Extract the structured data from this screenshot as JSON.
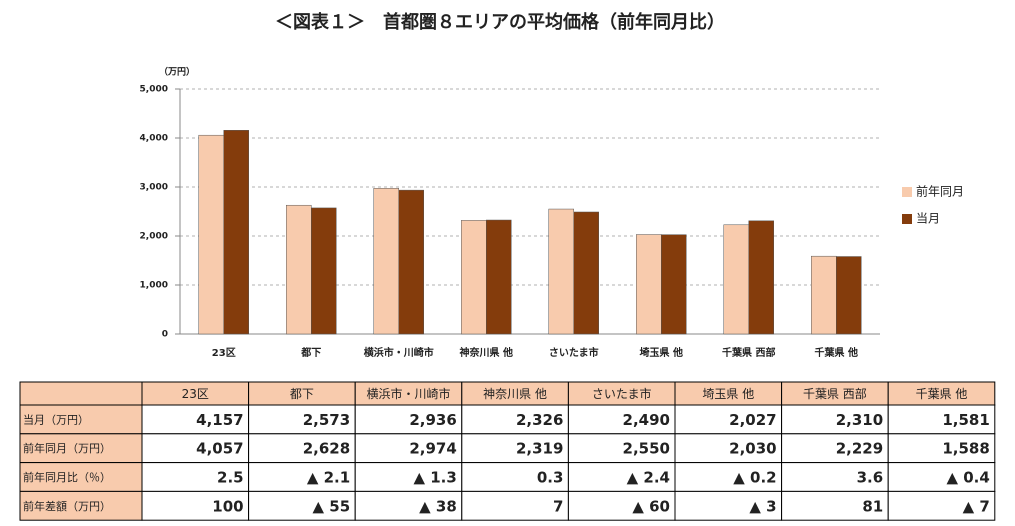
{
  "chart_data": {
    "type": "bar",
    "title": "＜図表１＞　首都圏８エリアの平均価格（前年同月比）",
    "y_label": "（万円）",
    "categories": [
      "23区",
      "都下",
      "横浜市・川崎市",
      "神奈川県 他",
      "さいたま市",
      "埼玉県 他",
      "千葉県 西部",
      "千葉県 他"
    ],
    "series": [
      {
        "name": "前年同月",
        "color": "#f8cbad",
        "values": [
          4057,
          2628,
          2974,
          2319,
          2550,
          2030,
          2229,
          1588
        ],
        "value_labels": [
          "4,057",
          "2,628",
          "2,974",
          "2,319",
          "2,550",
          "2,030",
          "2,229",
          "1,588"
        ]
      },
      {
        "name": "当月",
        "color": "#843c0c",
        "values": [
          4157,
          2573,
          2936,
          2326,
          2490,
          2027,
          2310,
          1581
        ],
        "value_labels": [
          "4,157",
          "2,573",
          "2,936",
          "2,326",
          "2,490",
          "2,027",
          "2,310",
          "1,581"
        ]
      }
    ],
    "ylim": [
      0,
      5000
    ],
    "yticks": [
      0,
      {
        "value": 1000,
        "label": "1,000"
      },
      {
        "value": 2000,
        "label": "2,000"
      },
      {
        "value": 3000,
        "label": "3,000"
      },
      {
        "value": 4000,
        "label": "4,000"
      },
      {
        "value": 5000,
        "label": "5,000"
      }
    ],
    "grid": true,
    "legend": "right"
  },
  "table": {
    "row_labels": [
      "当月（万円）",
      "前年同月（万円）",
      "前年同月比（％）",
      "前年差額（万円）"
    ],
    "ratio": [
      "2.5",
      "▲ 2.1",
      "▲ 1.3",
      "0.3",
      "▲ 2.4",
      "▲ 0.2",
      "3.6",
      "▲ 0.4"
    ],
    "diff": [
      "100",
      "▲ 55",
      "▲ 38",
      "7",
      "▲ 60",
      "▲ 3",
      "81",
      "▲ 7"
    ]
  }
}
